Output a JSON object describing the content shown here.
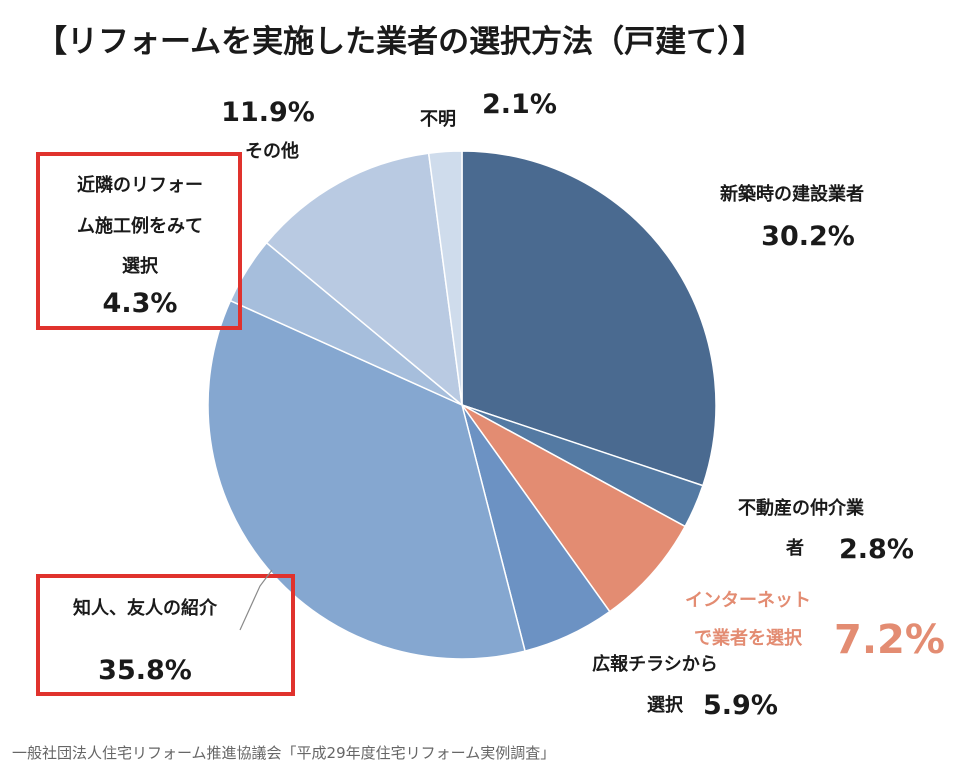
{
  "chart_data": {
    "type": "pie",
    "title": "【リフォームを実施した業者の選択方法（戸建て）】",
    "source": "一般社団法人住宅リフォーム推進協議会「平成29年度住宅リフォーム実例調査」",
    "slices": [
      {
        "label_lines": [
          "新築時の建設業者"
        ],
        "value": 30.2,
        "display": "30.2%",
        "color": "#4a6a90"
      },
      {
        "label_lines": [
          "不動産の仲介業",
          "者"
        ],
        "value": 2.8,
        "display": "2.8%",
        "color": "#547aa3"
      },
      {
        "label_lines": [
          "インターネット",
          "で業者を選択"
        ],
        "value": 7.2,
        "display": "7.2%",
        "color": "#e38c72",
        "label_color": "#e38c72"
      },
      {
        "label_lines": [
          "広報チラシから",
          "選択"
        ],
        "value": 5.9,
        "display": "5.9%",
        "color": "#6c92c3"
      },
      {
        "label_lines": [
          "知人、友人の紹介"
        ],
        "value": 35.8,
        "display": "35.8%",
        "color": "#85a7d0",
        "highlight_color": "#e0322d"
      },
      {
        "label_lines": [
          "近隣のリフォー",
          "ム施工例をみて",
          "選択"
        ],
        "value": 4.3,
        "display": "4.3%",
        "color": "#a6bedc",
        "highlight_color": "#e0322d"
      },
      {
        "label_lines": [
          "その他"
        ],
        "value": 11.9,
        "display": "11.9%",
        "color": "#b9cae2"
      },
      {
        "label_lines": [
          "不明"
        ],
        "value": 2.1,
        "display": "2.1%",
        "color": "#cfdcec"
      }
    ]
  }
}
